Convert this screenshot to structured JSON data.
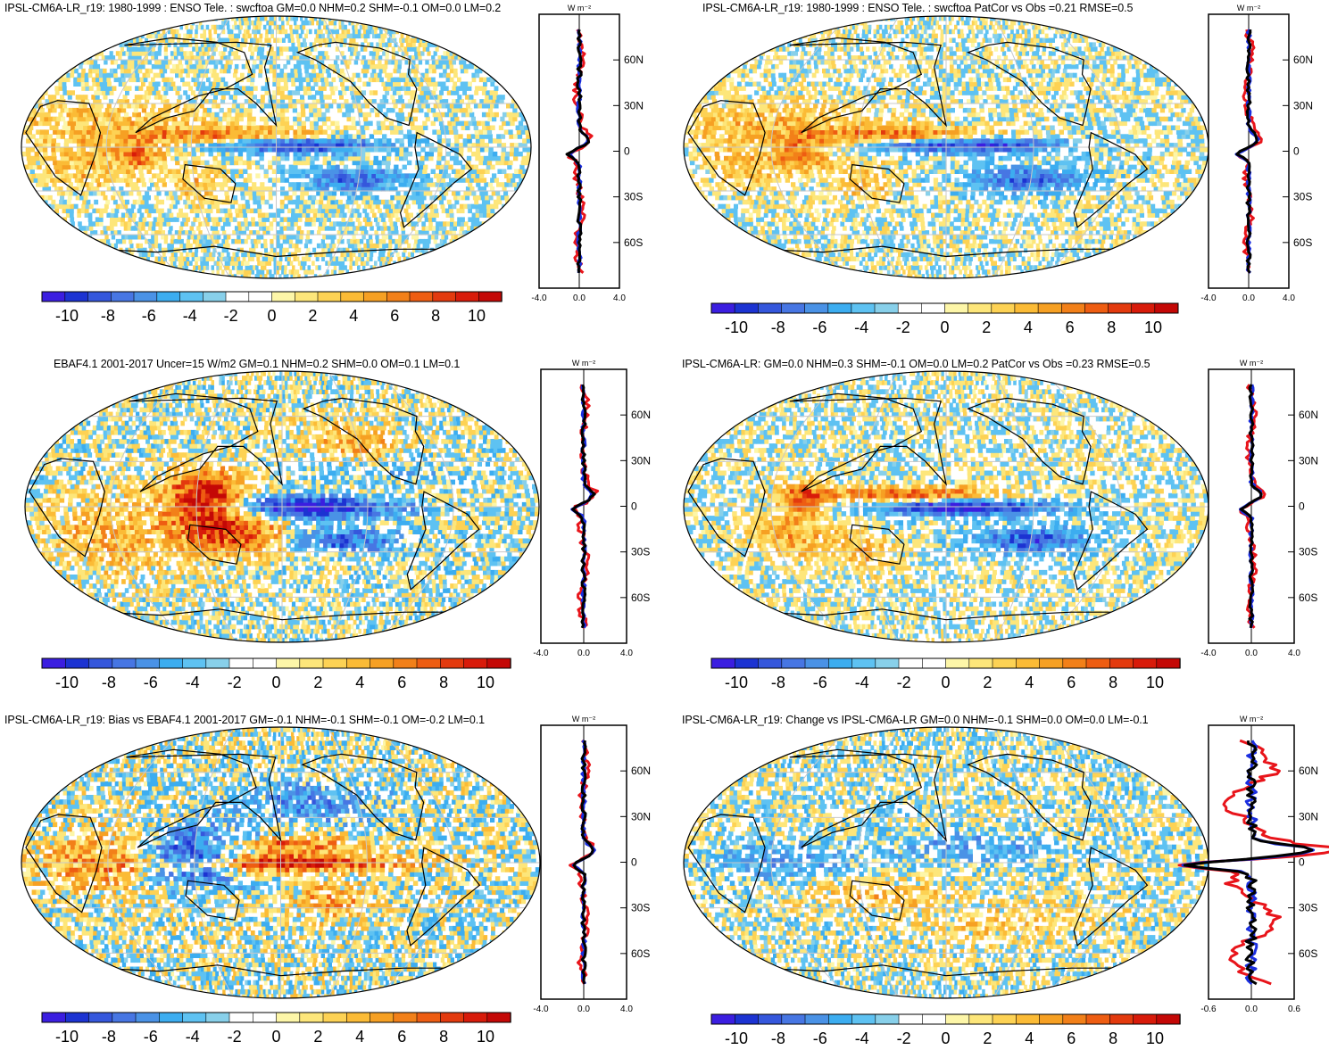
{
  "palette": {
    "neg": [
      "#3b1ee0",
      "#1c33d2",
      "#3557dc",
      "#4776e3",
      "#4a92e6",
      "#3cadf0",
      "#5ec2f2",
      "#88d0ea"
    ],
    "zero": "#ffffff",
    "pos": [
      "#fdf6a8",
      "#fde67a",
      "#fdd254",
      "#fbbb36",
      "#f6a023",
      "#f28019",
      "#ee5d12",
      "#e33a0e",
      "#d81b0a",
      "#c40806"
    ],
    "map_grid": "#c8c8c8",
    "coast": "#000000"
  },
  "panels": [
    {
      "id": "model-1980-1999",
      "title": "IPSL-CM6A-LR_r19: 1980-1999 : ENSO Tele. : swcftoa GM=0.0 NHM=0.2 SHM=-0.1 OM=0.0 LM=0.2",
      "unit": "W m⁻²",
      "colorbar_labels": [
        "-10",
        "-8",
        "-6",
        "-4",
        "-2",
        "0",
        "2",
        "4",
        "6",
        "8",
        "10"
      ],
      "lat_ticks": [
        "60N",
        "30N",
        "0",
        "30S",
        "60S"
      ],
      "x_ticks": [
        "-4.0",
        "0.0",
        "4.0"
      ]
    },
    {
      "id": "model-patcor",
      "title": "IPSL-CM6A-LR_r19: 1980-1999 : ENSO Tele. : swcftoa PatCor vs Obs =0.21 RMSE=0.5",
      "unit": "W m⁻²",
      "colorbar_labels": [
        "-10",
        "-8",
        "-6",
        "-4",
        "-2",
        "0",
        "2",
        "4",
        "6",
        "8",
        "10"
      ],
      "lat_ticks": [
        "60N",
        "30N",
        "0",
        "30S",
        "60S"
      ],
      "x_ticks": [
        "-4.0",
        "0.0",
        "4.0"
      ]
    },
    {
      "id": "obs-ebaf",
      "title": "EBAF4.1 2001-2017 Uncer=15 W/m2 GM=0.1 NHM=0.2 SHM=0.0 OM=0.1 LM=0.1",
      "unit": "W m⁻²",
      "colorbar_labels": [
        "-10",
        "-8",
        "-6",
        "-4",
        "-2",
        "0",
        "2",
        "4",
        "6",
        "8",
        "10"
      ],
      "lat_ticks": [
        "60N",
        "30N",
        "0",
        "30S",
        "60S"
      ],
      "x_ticks": [
        "-4.0",
        "0.0",
        "4.0"
      ]
    },
    {
      "id": "reference-model",
      "title": "IPSL-CM6A-LR: GM=0.0 NHM=0.3 SHM=-0.1 OM=0.0 LM=0.2 PatCor vs Obs =0.23 RMSE=0.5",
      "unit": "W m⁻²",
      "colorbar_labels": [
        "-10",
        "-8",
        "-6",
        "-4",
        "-2",
        "0",
        "2",
        "4",
        "6",
        "8",
        "10"
      ],
      "lat_ticks": [
        "60N",
        "30N",
        "0",
        "30S",
        "60S"
      ],
      "x_ticks": [
        "-4.0",
        "0.0",
        "4.0"
      ]
    },
    {
      "id": "bias",
      "title": "IPSL-CM6A-LR_r19: Bias vs EBAF4.1 2001-2017 GM=-0.1 NHM=-0.1 SHM=-0.1 OM=-0.2 LM=0.1",
      "unit": "W m⁻²",
      "colorbar_labels": [
        "-10",
        "-8",
        "-6",
        "-4",
        "-2",
        "0",
        "2",
        "4",
        "6",
        "8",
        "10"
      ],
      "lat_ticks": [
        "60N",
        "30N",
        "0",
        "30S",
        "60S"
      ],
      "x_ticks": [
        "-4.0",
        "0.0",
        "4.0"
      ]
    },
    {
      "id": "change",
      "title": "IPSL-CM6A-LR_r19: Change vs IPSL-CM6A-LR GM=0.0 NHM=-0.1 SHM=0.0 OM=0.0 LM=-0.1",
      "unit": "W m⁻²",
      "colorbar_labels": [
        "-10",
        "-8",
        "-6",
        "-4",
        "-2",
        "0",
        "2",
        "4",
        "6",
        "8",
        "10"
      ],
      "lat_ticks": [
        "60N",
        "30N",
        "0",
        "30S",
        "60S"
      ],
      "x_ticks": [
        "-0.6",
        "0.0",
        "0.6"
      ]
    }
  ],
  "chart_data": [
    {
      "type": "heatmap",
      "title": "IPSL-CM6A-LR_r19: 1980-1999 : ENSO Tele. : swcftoa GM=0.0 NHM=0.2 SHM=-0.1 OM=0.0 LM=0.2",
      "colorbar_range": [
        -10,
        10
      ],
      "colorbar_ticks": [
        -10,
        -8,
        -6,
        -4,
        -2,
        0,
        2,
        4,
        6,
        8,
        10
      ],
      "zonal_profile": {
        "xlim": [
          -4,
          4
        ],
        "ylabel": "W m-2",
        "y_ticks": [
          "60N",
          "30N",
          "0",
          "30S",
          "60S"
        ]
      }
    },
    {
      "type": "heatmap",
      "title": "IPSL-CM6A-LR_r19: 1980-1999 : ENSO Tele. : swcftoa PatCor vs Obs =0.21 RMSE=0.5",
      "colorbar_range": [
        -10,
        10
      ],
      "colorbar_ticks": [
        -10,
        -8,
        -6,
        -4,
        -2,
        0,
        2,
        4,
        6,
        8,
        10
      ],
      "zonal_profile": {
        "xlim": [
          -4,
          4
        ],
        "y_ticks": [
          "60N",
          "30N",
          "0",
          "30S",
          "60S"
        ]
      }
    },
    {
      "type": "heatmap",
      "title": "EBAF4.1 2001-2017 Uncer=15 W/m2 GM=0.1 NHM=0.2 SHM=0.0 OM=0.1 LM=0.1",
      "colorbar_range": [
        -10,
        10
      ],
      "colorbar_ticks": [
        -10,
        -8,
        -6,
        -4,
        -2,
        0,
        2,
        4,
        6,
        8,
        10
      ],
      "zonal_profile": {
        "xlim": [
          -4,
          4
        ],
        "y_ticks": [
          "60N",
          "30N",
          "0",
          "30S",
          "60S"
        ]
      }
    },
    {
      "type": "heatmap",
      "title": "IPSL-CM6A-LR: GM=0.0 NHM=0.3 SHM=-0.1 OM=0.0 LM=0.2 PatCor vs Obs =0.23 RMSE=0.5",
      "colorbar_range": [
        -10,
        10
      ],
      "colorbar_ticks": [
        -10,
        -8,
        -6,
        -4,
        -2,
        0,
        2,
        4,
        6,
        8,
        10
      ],
      "zonal_profile": {
        "xlim": [
          -4,
          4
        ],
        "y_ticks": [
          "60N",
          "30N",
          "0",
          "30S",
          "60S"
        ]
      }
    },
    {
      "type": "heatmap",
      "title": "IPSL-CM6A-LR_r19: Bias vs EBAF4.1 2001-2017 GM=-0.1 NHM=-0.1 SHM=-0.1 OM=-0.2 LM=0.1",
      "colorbar_range": [
        -10,
        10
      ],
      "colorbar_ticks": [
        -10,
        -8,
        -6,
        -4,
        -2,
        0,
        2,
        4,
        6,
        8,
        10
      ],
      "zonal_profile": {
        "xlim": [
          -4,
          4
        ],
        "y_ticks": [
          "60N",
          "30N",
          "0",
          "30S",
          "60S"
        ]
      }
    },
    {
      "type": "heatmap",
      "title": "IPSL-CM6A-LR_r19: Change vs IPSL-CM6A-LR GM=0.0 NHM=-0.1 SHM=0.0 OM=0.0 LM=-0.1",
      "colorbar_range": [
        -10,
        10
      ],
      "colorbar_ticks": [
        -10,
        -8,
        -6,
        -4,
        -2,
        0,
        2,
        4,
        6,
        8,
        10
      ],
      "zonal_profile": {
        "xlim": [
          -0.6,
          0.6
        ],
        "y_ticks": [
          "60N",
          "30N",
          "0",
          "30S",
          "60S"
        ]
      }
    }
  ]
}
